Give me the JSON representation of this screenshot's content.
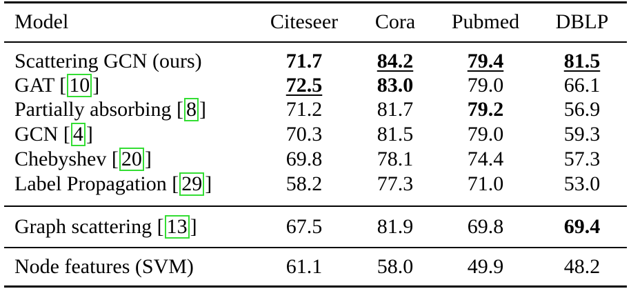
{
  "table": {
    "headers": {
      "model": "Model",
      "citeseer": "Citeseer",
      "cora": "Cora",
      "pubmed": "Pubmed",
      "dblp": "DBLP"
    },
    "rows": [
      {
        "name": "Scattering GCN (ours)",
        "ref": "",
        "values": [
          "71.7",
          "84.2",
          "79.4",
          "81.5"
        ]
      },
      {
        "name": "GAT [",
        "ref": "10",
        "values": [
          "72.5",
          "83.0",
          "79.0",
          "66.1"
        ]
      },
      {
        "name": "Partially absorbing [",
        "ref": "8",
        "values": [
          "71.2",
          "81.7",
          "79.2",
          "56.9"
        ]
      },
      {
        "name": "GCN [",
        "ref": "4",
        "values": [
          "70.3",
          "81.5",
          "79.0",
          "59.3"
        ]
      },
      {
        "name": "Chebyshev [",
        "ref": "20",
        "values": [
          "69.8",
          "78.1",
          "74.4",
          "57.3"
        ]
      },
      {
        "name": "Label Propagation [",
        "ref": "29",
        "values": [
          "58.2",
          "77.3",
          "71.0",
          "53.0"
        ]
      },
      {
        "name": "Graph scattering [",
        "ref": "13",
        "values": [
          "67.5",
          "81.9",
          "69.8",
          "69.4"
        ]
      },
      {
        "name": "Node features (SVM)",
        "ref": "",
        "values": [
          "61.1",
          "58.0",
          "49.9",
          "48.2"
        ]
      }
    ],
    "closing_bracket": "]",
    "reference_box_color": "#33dd33"
  }
}
